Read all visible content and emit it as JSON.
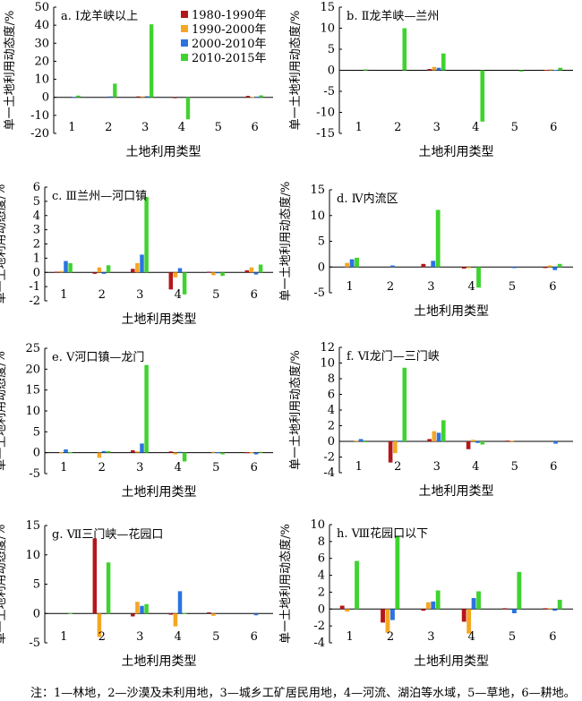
{
  "legend": {
    "entries": [
      {
        "name": "1980-1990年",
        "color": "#b3171a"
      },
      {
        "name": "1990-2000年",
        "color": "#f5a623"
      },
      {
        "name": "2000-2010年",
        "color": "#2b73e0"
      },
      {
        "name": "2010-2015年",
        "color": "#3fd32f"
      }
    ],
    "placement": "inside panel a, top-right"
  },
  "note": "注：1—林地，2—沙漠及未利用地，3—城乡工矿居民用地，4—河流、湖泊等水域，5—草地，6—耕地。",
  "chart_data": [
    {
      "type": "bar",
      "title": "a. Ⅰ龙羊峡以上",
      "xlabel": "土地利用类型",
      "ylabel": "单一土地利用动态度/%",
      "categories": [
        "1",
        "2",
        "3",
        "4",
        "5",
        "6"
      ],
      "ylim": [
        -20,
        50
      ],
      "yticks": [
        -20,
        -10,
        0,
        10,
        20,
        30,
        40,
        50
      ],
      "grid": false,
      "series": [
        {
          "name": "1980-1990年",
          "values": [
            0,
            0,
            0.5,
            -0.3,
            0,
            0.8
          ]
        },
        {
          "name": "1990-2000年",
          "values": [
            0,
            0,
            0.5,
            0,
            0,
            0.3
          ]
        },
        {
          "name": "2000-2010年",
          "values": [
            0.1,
            0.5,
            0.6,
            0,
            0,
            0.4
          ]
        },
        {
          "name": "2010-2015年",
          "values": [
            1.0,
            7.6,
            40.5,
            -12.2,
            0,
            1.1
          ]
        }
      ]
    },
    {
      "type": "bar",
      "title": "b. Ⅱ龙羊峡—兰州",
      "xlabel": "土地利用类型",
      "ylabel": "单一土地利用动态度/%",
      "categories": [
        "1",
        "2",
        "3",
        "4",
        "5",
        "6"
      ],
      "ylim": [
        -15,
        15
      ],
      "yticks": [
        -15,
        -10,
        -5,
        0,
        5,
        10,
        15
      ],
      "grid": false,
      "series": [
        {
          "name": "1980-1990年",
          "values": [
            0,
            0,
            0.3,
            0,
            0,
            0.1
          ]
        },
        {
          "name": "1990-2000年",
          "values": [
            0,
            0,
            0.8,
            0,
            0,
            0.2
          ]
        },
        {
          "name": "2000-2010年",
          "values": [
            0,
            0,
            0.6,
            0,
            0,
            0.1
          ]
        },
        {
          "name": "2010-2015年",
          "values": [
            0.2,
            10.0,
            4.0,
            -12.2,
            -0.3,
            0.6
          ]
        }
      ]
    },
    {
      "type": "bar",
      "title": "c. Ⅲ兰州—河口镇",
      "xlabel": "土地利用类型",
      "ylabel": "单一土地利用动态度/%",
      "categories": [
        "1",
        "2",
        "3",
        "4",
        "5",
        "6"
      ],
      "ylim": [
        -2,
        6
      ],
      "yticks": [
        -2,
        -1,
        0,
        1,
        2,
        3,
        4,
        5,
        6
      ],
      "grid": false,
      "series": [
        {
          "name": "1980-1990年",
          "values": [
            0.05,
            -0.1,
            0.25,
            -1.2,
            0.05,
            0.15
          ]
        },
        {
          "name": "1990-2000年",
          "values": [
            0.1,
            0.35,
            0.65,
            -0.35,
            -0.2,
            0.35
          ]
        },
        {
          "name": "2000-2010年",
          "values": [
            0.8,
            -0.1,
            1.25,
            0.3,
            -0.05,
            -0.15
          ]
        },
        {
          "name": "2010-2015年",
          "values": [
            0.65,
            0.5,
            5.3,
            -1.55,
            -0.25,
            0.55
          ]
        }
      ]
    },
    {
      "type": "bar",
      "title": "d. Ⅳ内流区",
      "xlabel": "土地利用类型",
      "ylabel": "单一土地利用动态度/%",
      "categories": [
        "1",
        "2",
        "3",
        "4",
        "5",
        "6"
      ],
      "ylim": [
        -5,
        15
      ],
      "yticks": [
        -5,
        0,
        5,
        10,
        15
      ],
      "grid": false,
      "series": [
        {
          "name": "1980-1990年",
          "values": [
            0,
            0,
            0.6,
            -0.3,
            0,
            -0.2
          ]
        },
        {
          "name": "1990-2000年",
          "values": [
            0.8,
            0,
            0,
            -0.2,
            0,
            0.3
          ]
        },
        {
          "name": "2000-2010年",
          "values": [
            1.5,
            0.3,
            1.2,
            0,
            -0.2,
            -0.6
          ]
        },
        {
          "name": "2010-2015年",
          "values": [
            1.8,
            0,
            11.1,
            -4.0,
            0,
            0.6
          ]
        }
      ]
    },
    {
      "type": "bar",
      "title": "e. Ⅴ河口镇—龙门",
      "xlabel": "土地利用类型",
      "ylabel": "单一土地利用动态度/%",
      "categories": [
        "1",
        "2",
        "3",
        "4",
        "5",
        "6"
      ],
      "ylim": [
        -5,
        25
      ],
      "yticks": [
        -5,
        0,
        5,
        10,
        15,
        20,
        25
      ],
      "grid": false,
      "series": [
        {
          "name": "1980-1990年",
          "values": [
            0,
            0,
            0.6,
            0.3,
            0,
            0.1
          ]
        },
        {
          "name": "1990-2000年",
          "values": [
            0.1,
            -1.2,
            0.3,
            -0.4,
            0.2,
            0.1
          ]
        },
        {
          "name": "2000-2010年",
          "values": [
            0.8,
            0.4,
            2.2,
            0.2,
            0.1,
            -0.4
          ]
        },
        {
          "name": "2010-2015年",
          "values": [
            0.1,
            0.4,
            21.0,
            -2.1,
            -0.4,
            0.2
          ]
        }
      ]
    },
    {
      "type": "bar",
      "title": "f. Ⅵ龙门—三门峡",
      "xlabel": "土地利用类型",
      "ylabel": "单一土地利用动态度/%",
      "categories": [
        "1",
        "2",
        "3",
        "4",
        "5",
        "6"
      ],
      "ylim": [
        -4,
        12
      ],
      "yticks": [
        -4,
        -2,
        0,
        2,
        4,
        6,
        8,
        10,
        12
      ],
      "grid": false,
      "series": [
        {
          "name": "1980-1990年",
          "values": [
            0,
            -2.7,
            0.3,
            -1.0,
            0.1,
            0
          ]
        },
        {
          "name": "1990-2000年",
          "values": [
            0.1,
            -1.5,
            1.3,
            0.2,
            0.1,
            0
          ]
        },
        {
          "name": "2000-2010年",
          "values": [
            0.3,
            0.1,
            1.1,
            -0.2,
            0,
            -0.3
          ]
        },
        {
          "name": "2010-2015年",
          "values": [
            -0.1,
            9.4,
            2.7,
            -0.4,
            0,
            0
          ]
        }
      ]
    },
    {
      "type": "bar",
      "title": "g. Ⅶ三门峡—花园口",
      "xlabel": "土地利用类型",
      "ylabel": "单一土地利用动态度/%",
      "categories": [
        "1",
        "2",
        "3",
        "4",
        "5",
        "6"
      ],
      "ylim": [
        -5,
        15
      ],
      "yticks": [
        -5,
        0,
        5,
        10,
        15
      ],
      "grid": false,
      "series": [
        {
          "name": "1980-1990年",
          "values": [
            0,
            12.8,
            -0.5,
            -0.2,
            0.2,
            0
          ]
        },
        {
          "name": "1990-2000年",
          "values": [
            0,
            -4.0,
            2.0,
            -2.2,
            -0.4,
            0
          ]
        },
        {
          "name": "2000-2010年",
          "values": [
            0,
            0,
            1.3,
            3.8,
            0,
            -0.3
          ]
        },
        {
          "name": "2010-2015年",
          "values": [
            0.1,
            8.7,
            1.6,
            0.1,
            0,
            0
          ]
        }
      ]
    },
    {
      "type": "bar",
      "title": "h. Ⅷ花园口以下",
      "xlabel": "土地利用类型",
      "ylabel": "单一土地利用动态度/%",
      "categories": [
        "1",
        "2",
        "3",
        "4",
        "5",
        "6"
      ],
      "ylim": [
        -4,
        10
      ],
      "yticks": [
        -4,
        -2,
        0,
        2,
        4,
        6,
        8,
        10
      ],
      "grid": false,
      "series": [
        {
          "name": "1980-1990年",
          "values": [
            0.4,
            -1.6,
            -0.2,
            -1.5,
            0.1,
            0.1
          ]
        },
        {
          "name": "1990-2000年",
          "values": [
            -0.3,
            -2.8,
            0.8,
            -2.9,
            0,
            0.1
          ]
        },
        {
          "name": "2000-2010年",
          "values": [
            0,
            -1.3,
            0.9,
            1.3,
            -0.5,
            -0.2
          ]
        },
        {
          "name": "2010-2015年",
          "values": [
            5.7,
            8.6,
            2.2,
            2.1,
            4.4,
            1.1
          ]
        }
      ]
    }
  ]
}
